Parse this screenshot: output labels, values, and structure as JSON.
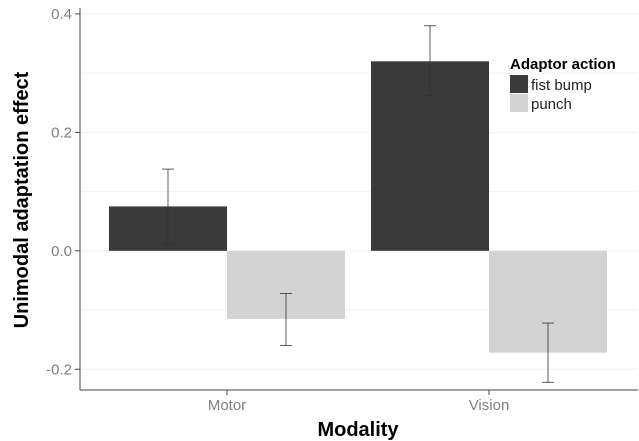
{
  "chart_data": {
    "type": "bar",
    "title": "",
    "xlabel": "Modality",
    "ylabel": "Unimodal adaptation effect",
    "categories": [
      "Motor",
      "Vision"
    ],
    "series": [
      {
        "name": "fist bump",
        "values": [
          0.075,
          0.32
        ],
        "error_low": [
          0.012,
          0.262
        ],
        "error_high": [
          0.138,
          0.38
        ],
        "color": "#3a3a3a"
      },
      {
        "name": "punch",
        "values": [
          -0.115,
          -0.172
        ],
        "error_low": [
          -0.16,
          -0.222
        ],
        "error_high": [
          -0.072,
          -0.122
        ],
        "color": "#d3d3d3"
      }
    ],
    "ylim": [
      -0.235,
      0.41
    ],
    "yticks": [
      -0.2,
      0.0,
      0.2,
      0.4
    ],
    "ytick_labels": [
      "-0.2",
      "0.0",
      "0.2",
      "0.4"
    ],
    "grid": true,
    "legend": {
      "title": "Adaptor action",
      "placement": "top-right"
    }
  }
}
